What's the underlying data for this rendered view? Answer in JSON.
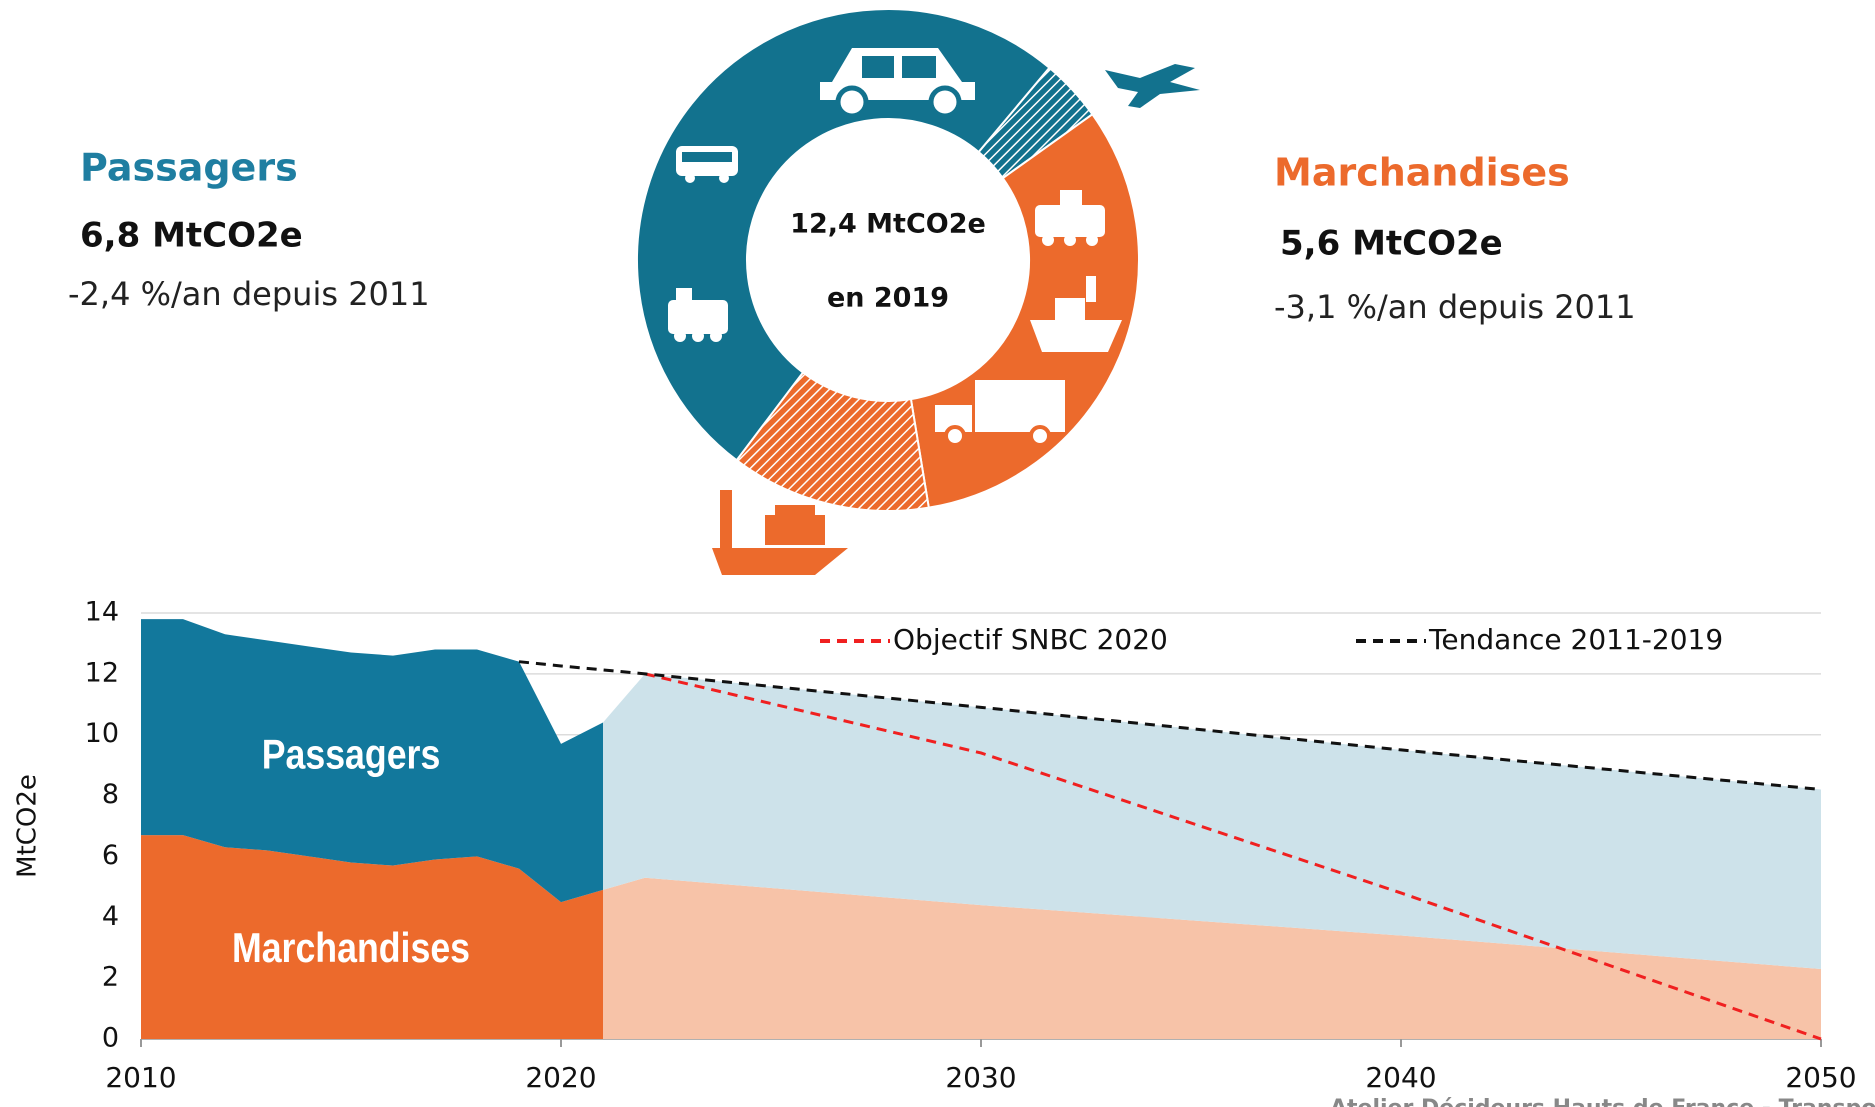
{
  "chart_data": [
    {
      "type": "donut",
      "center_label": [
        "12,4 MtCO2e",
        "en 2019"
      ],
      "values": [
        0.5,
        4.0,
        1.6,
        6.3
      ],
      "colors": [
        "#12728e",
        "#ec6a2c",
        "#ec6a2c",
        "#12728e"
      ],
      "hatched": [
        true,
        false,
        true,
        false
      ],
      "annotations": {
        "passagers": {
          "title": "Passagers",
          "total": "6,8 MtCO2e",
          "trend": "-2,4 %/an depuis 2011",
          "color": "#1f7ea1"
        },
        "marchandises": {
          "title": "Marchandises",
          "total": "5,6 MtCO2e",
          "trend": "-3,1 %/an depuis 2011",
          "color": "#ec6a2c"
        }
      }
    },
    {
      "type": "area",
      "y_label": "MtCO2e",
      "x": [
        2010,
        2011,
        2012,
        2013,
        2014,
        2015,
        2016,
        2017,
        2018,
        2019,
        2020,
        2021,
        2022,
        2030,
        2040,
        2050
      ],
      "xlim": [
        2010,
        2050
      ],
      "xticks": [
        2010,
        2020,
        2030,
        2040,
        2050
      ],
      "ylim": [
        0,
        14
      ],
      "yticks": [
        0,
        2,
        4,
        6,
        8,
        10,
        12,
        14
      ],
      "grid": true,
      "series": [
        {
          "name": "Marchandises",
          "kind": "area",
          "stack": "hist",
          "color": "#ec6a2c",
          "values": [
            6.7,
            6.7,
            6.3,
            6.2,
            6.0,
            5.8,
            5.7,
            5.9,
            6.0,
            5.6,
            4.5,
            4.9,
            null,
            null,
            null,
            null
          ]
        },
        {
          "name": "Passagers",
          "kind": "area",
          "stack": "hist",
          "color": "#12789c",
          "values": [
            7.1,
            7.1,
            7.0,
            6.9,
            6.9,
            6.9,
            6.9,
            6.9,
            6.8,
            6.8,
            5.2,
            5.5,
            null,
            null,
            null,
            null
          ]
        },
        {
          "kind": "area",
          "stack": "proj",
          "color": "#f7c3a8",
          "values": [
            null,
            null,
            null,
            null,
            null,
            null,
            null,
            null,
            null,
            null,
            null,
            4.9,
            5.3,
            4.4,
            3.4,
            2.3
          ]
        },
        {
          "kind": "area",
          "stack": "proj",
          "color": "#cde2ea",
          "values": [
            null,
            null,
            null,
            null,
            null,
            null,
            null,
            null,
            null,
            null,
            null,
            5.5,
            6.7,
            6.5,
            6.1,
            5.9
          ]
        },
        {
          "name": "Objectif SNBC 2020",
          "kind": "line",
          "dashed": true,
          "color": "#f02020",
          "values": [
            null,
            null,
            null,
            null,
            null,
            null,
            null,
            null,
            null,
            null,
            null,
            null,
            12.0,
            9.4,
            4.8,
            0
          ]
        },
        {
          "name": "Tendance 2011-2019",
          "kind": "line",
          "dashed": true,
          "color": "#111111",
          "values": [
            null,
            null,
            null,
            null,
            null,
            null,
            null,
            null,
            null,
            12.4,
            12.26,
            12.13,
            12.0,
            10.9,
            9.5,
            8.2
          ]
        }
      ]
    }
  ],
  "footer": "Atelier Décideurs Hauts de France - Transport"
}
